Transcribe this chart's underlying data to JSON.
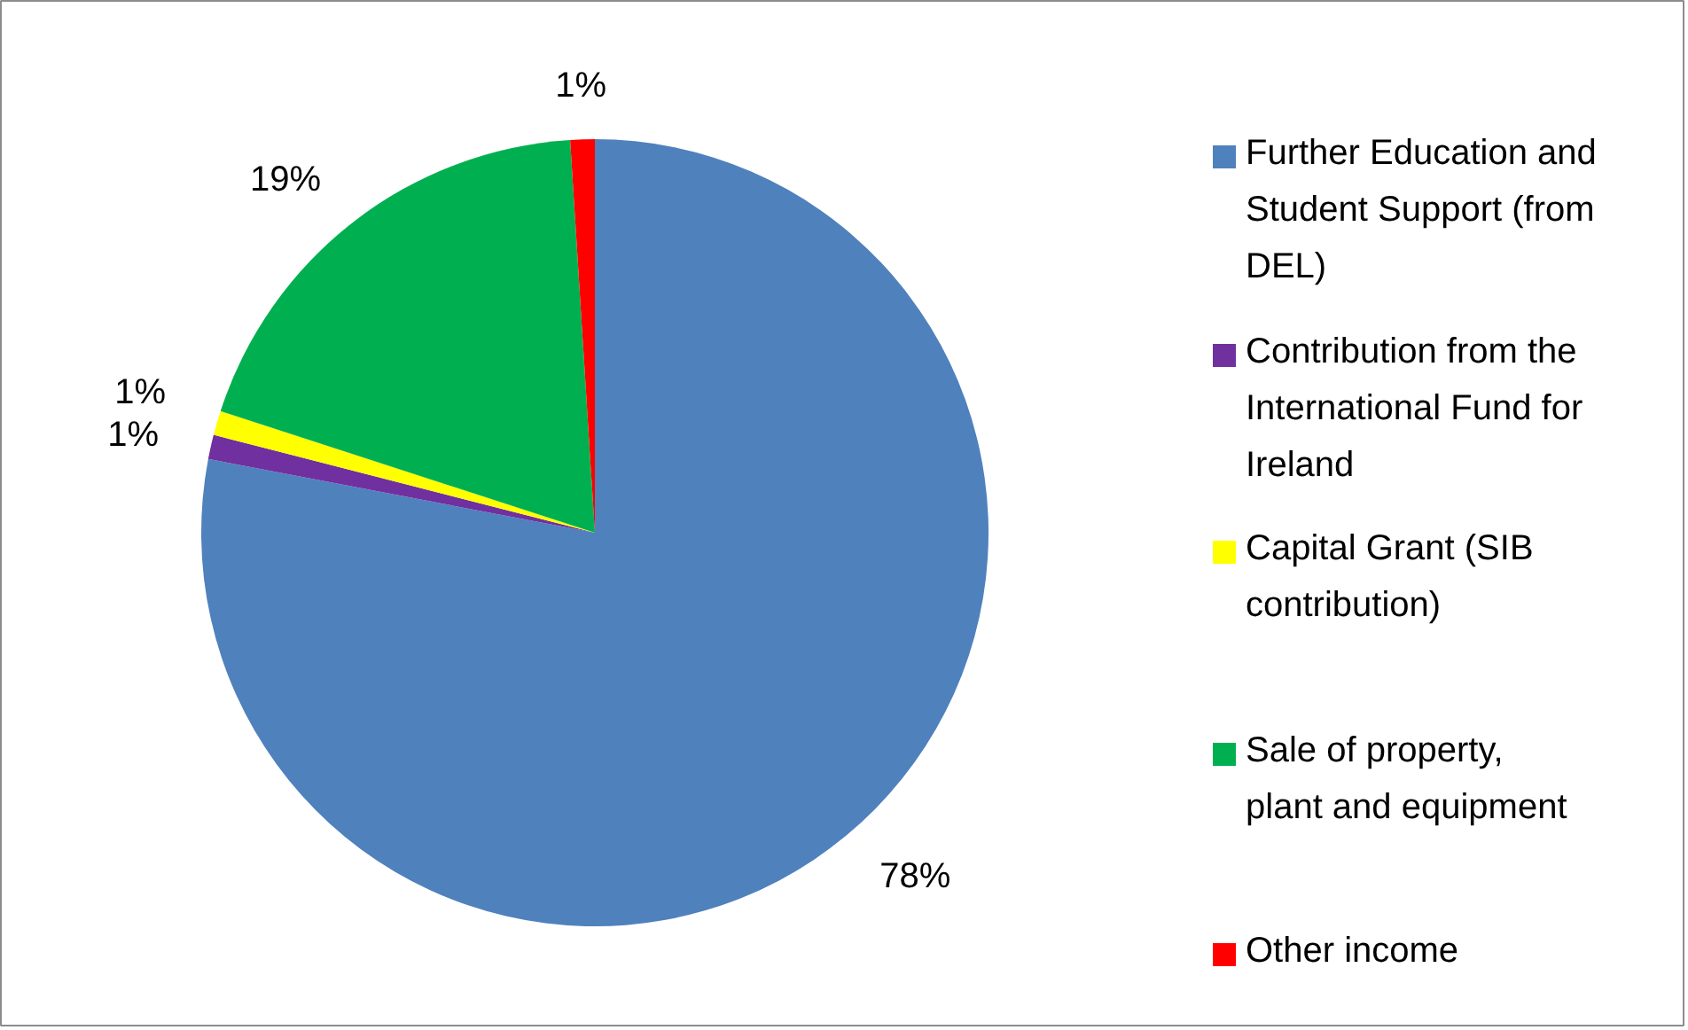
{
  "chart_data": {
    "type": "pie",
    "categories": [
      "Further Education and Student Support (from DEL)",
      "Contribution from the International Fund for Ireland",
      "Capital Grant (SIB contribution)",
      "Sale of property, plant and equipment",
      "Other income"
    ],
    "values": [
      78,
      1,
      1,
      19,
      1
    ],
    "colors": [
      "#4f81bd",
      "#7030a0",
      "#ffff00",
      "#00b050",
      "#ff0000"
    ],
    "value_labels": [
      "78%",
      "1%",
      "1%",
      "19%",
      "1%"
    ],
    "legend": "right"
  }
}
